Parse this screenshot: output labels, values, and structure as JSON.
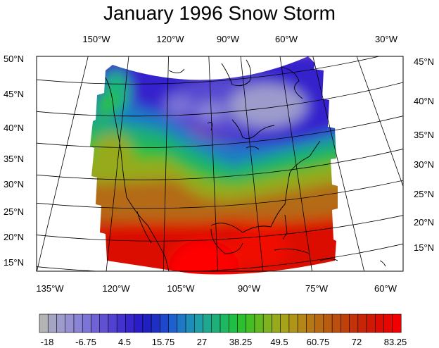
{
  "title": "January 1996 Snow Storm",
  "top_lon_labels": [
    "150°W",
    "120°W",
    "90°W",
    "60°W",
    "30°W"
  ],
  "bottom_lon_labels": [
    "135°W",
    "120°W",
    "105°W",
    "90°W",
    "75°W",
    "60°W"
  ],
  "left_lat_labels": [
    "50°N",
    "45°N",
    "40°N",
    "35°N",
    "30°N",
    "25°N",
    "20°N",
    "15°N"
  ],
  "right_lat_labels": [
    "45°N",
    "40°N",
    "35°N",
    "30°N",
    "25°N",
    "20°N",
    "15°N"
  ],
  "colorbar": {
    "tick_labels": [
      "-18",
      "-6.75",
      "4.5",
      "15.75",
      "27",
      "38.25",
      "49.5",
      "60.75",
      "72",
      "83.25"
    ],
    "colors": [
      "#b4b4b4",
      "#a5a5c3",
      "#9d9bcc",
      "#9690d2",
      "#8a84d6",
      "#7c74d6",
      "#6e62d4",
      "#6050d2",
      "#5240d0",
      "#4432ce",
      "#3626cc",
      "#2a1cc6",
      "#2020c0",
      "#1e30c4",
      "#1e48cc",
      "#1e60cc",
      "#1e78c6",
      "#1e8eb8",
      "#1e9ea6",
      "#1ea890",
      "#1eb078",
      "#1eb860",
      "#20be44",
      "#2cc030",
      "#44be24",
      "#62b820",
      "#7eb21e",
      "#96aa1c",
      "#a6a21a",
      "#b09418",
      "#b48616",
      "#b67814",
      "#b86a12",
      "#ba5c10",
      "#bc4e0e",
      "#c0400c",
      "#c4320a",
      "#c82408",
      "#d01806",
      "#da0c04",
      "#e60602",
      "#f20000"
    ]
  }
}
